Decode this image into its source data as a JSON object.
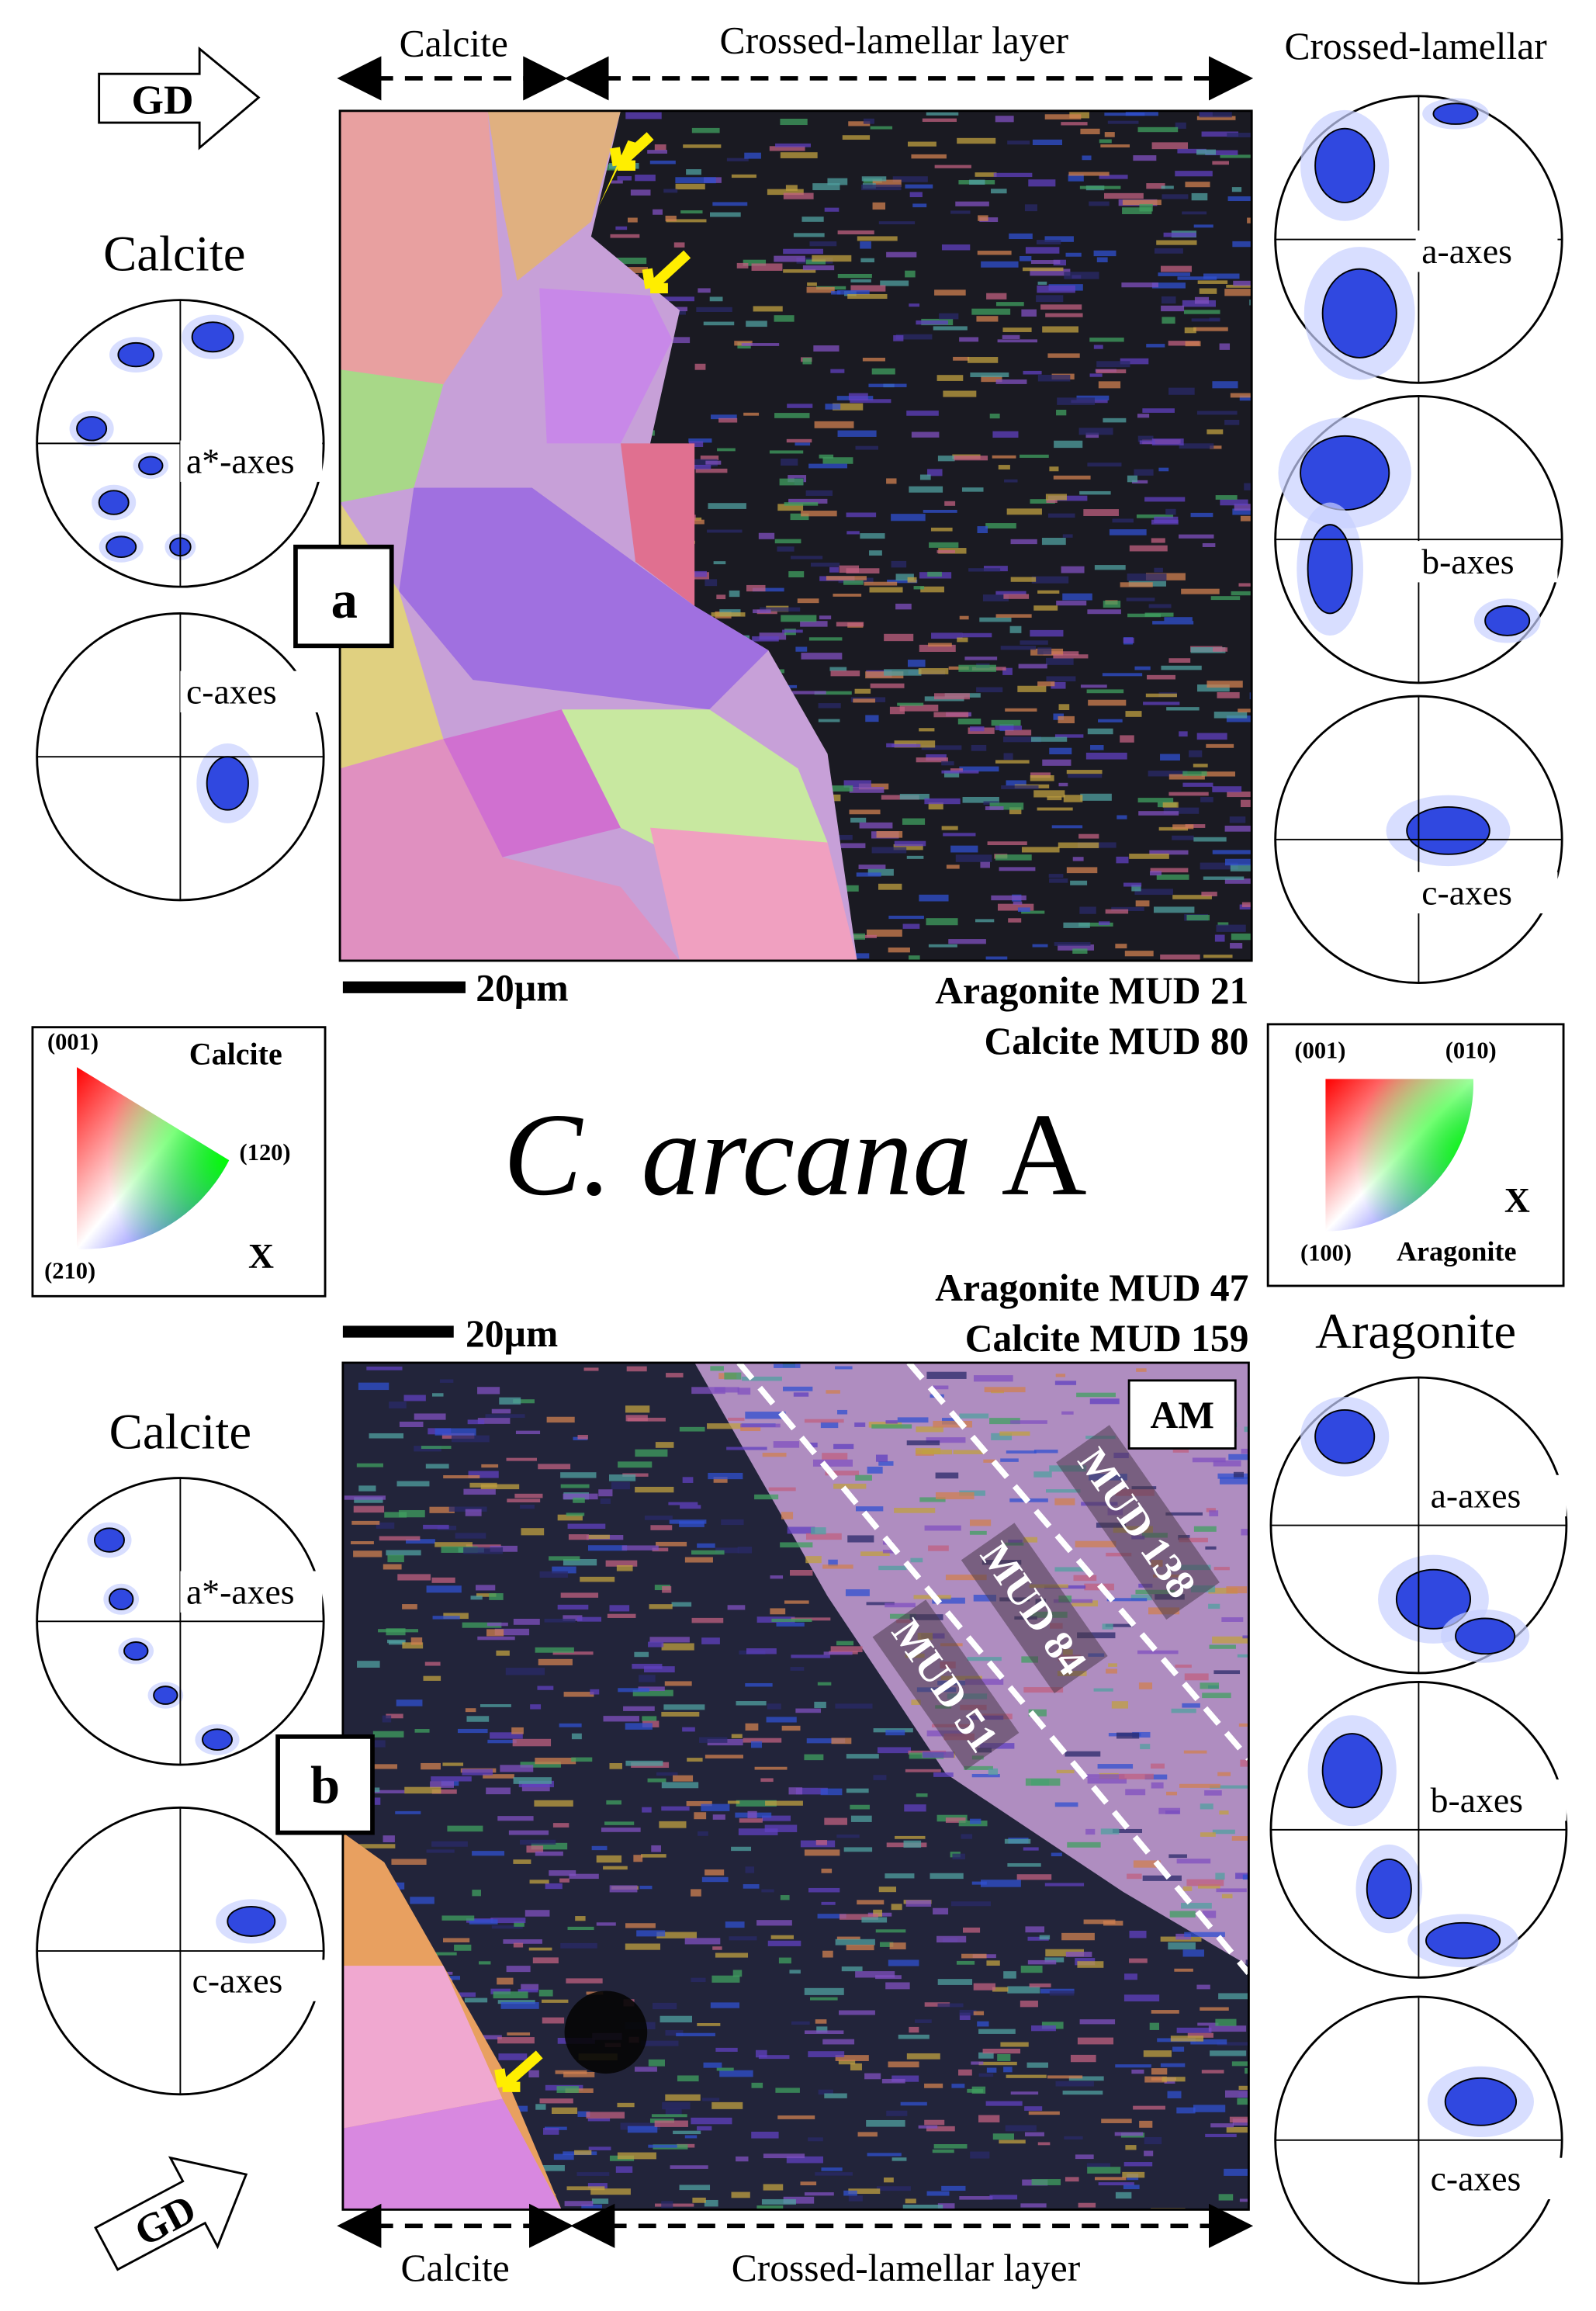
{
  "title": {
    "species": "C. arcana",
    "specimen": "A"
  },
  "panel_a": {
    "header": {
      "calcite": "Calcite",
      "layer": "Crossed-lamellar layer"
    },
    "gd": "GD",
    "label": "a",
    "scale_bar": "20µm",
    "mud": [
      "Aragonite MUD 21",
      "Calcite MUD 80"
    ],
    "left_pole_figures": {
      "title": "Calcite",
      "labels": [
        "a*-axes",
        "c-axes"
      ]
    },
    "right_pole_figures": {
      "title": "Crossed-lamellar",
      "labels": [
        "a-axes",
        "b-axes",
        "c-axes"
      ]
    }
  },
  "legend_calcite": {
    "title": "Calcite",
    "corners": [
      "(001)",
      "(120)",
      "(210)"
    ],
    "direction": "X"
  },
  "legend_aragonite": {
    "title": "Aragonite",
    "corners": [
      "(001)",
      "(010)",
      "(100)"
    ],
    "direction": "X"
  },
  "panel_b": {
    "mud": [
      "Aragonite MUD 47",
      "Calcite MUD 159"
    ],
    "scale_bar": "20µm",
    "label": "b",
    "gd": "GD",
    "region": "AM",
    "zones": [
      "MUD 138",
      "MUD 84",
      "MUD 51"
    ],
    "left_pole_figures": {
      "title": "Calcite",
      "labels": [
        "a*-axes",
        "c-axes"
      ]
    },
    "right_pole_figures": {
      "title": "Aragonite",
      "labels": [
        "a-axes",
        "b-axes",
        "c-axes"
      ]
    },
    "footer": {
      "calcite": "Calcite",
      "layer": "Crossed-lamellar layer"
    }
  }
}
